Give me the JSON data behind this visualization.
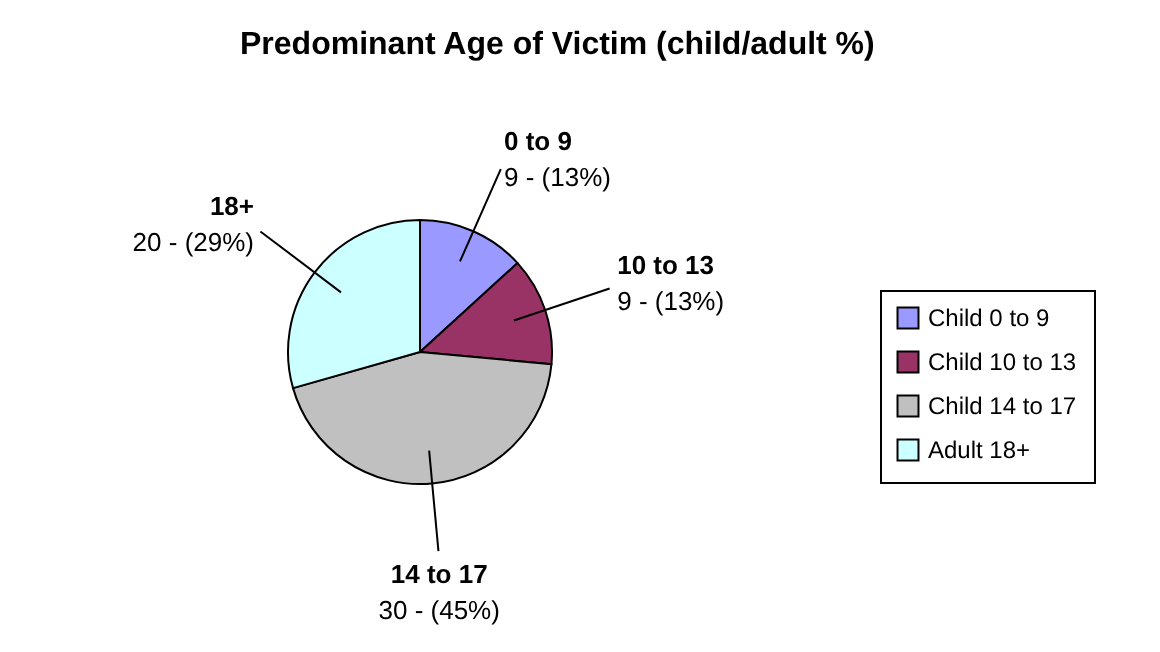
{
  "chart_data": {
    "type": "pie",
    "title": "Predominant Age of Victim (child/adult %)",
    "categories": [
      "Child 0 to 9",
      "Child 10 to 13",
      "Child 14 to 17",
      "Adult 18+"
    ],
    "values": [
      9,
      9,
      30,
      20
    ],
    "colors": [
      "#9999ff",
      "#993366",
      "#c0c0c0",
      "#ccffff"
    ],
    "value_labels": [
      "9 - (13%)",
      "9 - (13%)",
      "30 - (45%)",
      "20 - (29%)"
    ],
    "annotations": [
      "0 to 9",
      "10 to 13",
      "14 to 17",
      "18+"
    ],
    "legend": "right"
  }
}
